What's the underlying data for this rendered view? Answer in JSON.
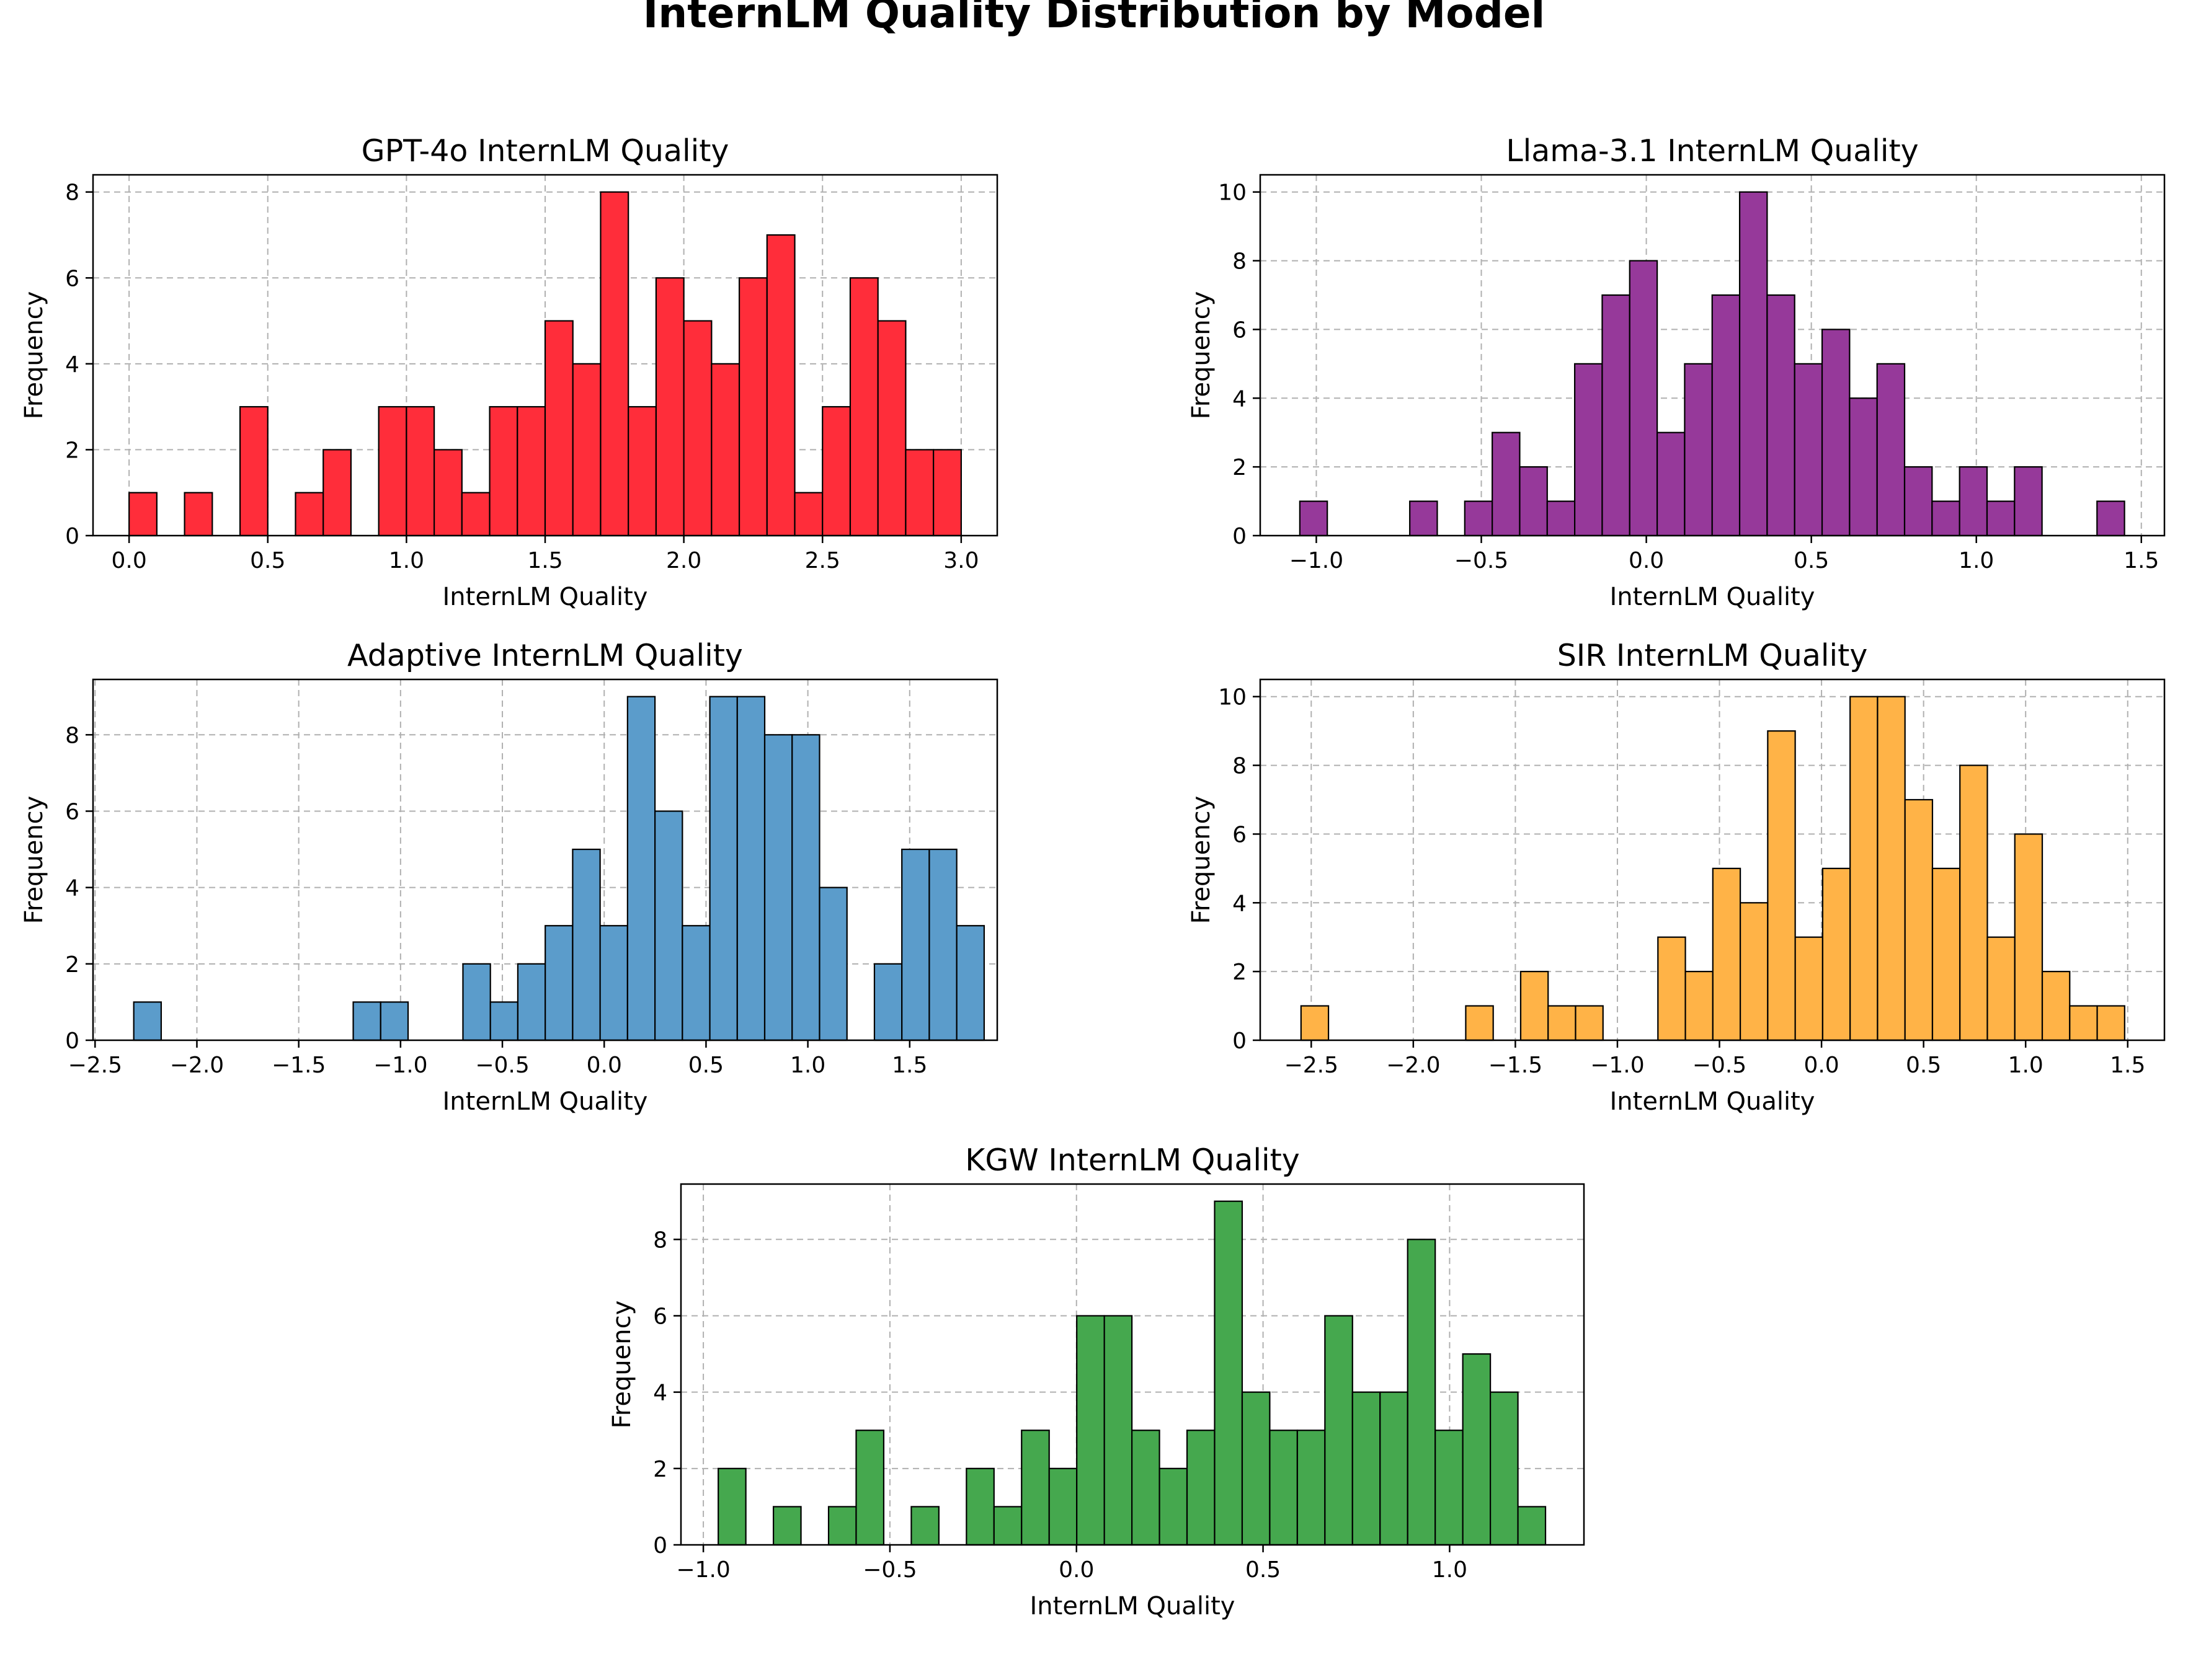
{
  "figure": {
    "suptitle": "InternLM Quality Distribution by Model"
  },
  "chart_data": [
    {
      "type": "bar",
      "title": "GPT-4o InternLM Quality",
      "xlabel": "InternLM Quality",
      "ylabel": "Frequency",
      "color": "#ff2d3a",
      "xlim": [
        -0.13,
        3.13
      ],
      "ylim": [
        0,
        8.4
      ],
      "x_ticks": [
        0.0,
        0.5,
        1.0,
        1.5,
        2.0,
        2.5,
        3.0
      ],
      "x_tick_labels": [
        "0.0",
        "0.5",
        "1.0",
        "1.5",
        "2.0",
        "2.5",
        "3.0"
      ],
      "y_ticks": [
        0,
        2,
        4,
        6,
        8
      ],
      "y_tick_labels": [
        "0",
        "2",
        "4",
        "6",
        "8"
      ],
      "bin_start": 0.0,
      "bin_width": 0.1,
      "values": [
        1,
        0,
        1,
        0,
        3,
        0,
        1,
        2,
        0,
        3,
        3,
        2,
        1,
        3,
        3,
        5,
        4,
        8,
        3,
        6,
        5,
        4,
        6,
        7,
        1,
        3,
        6,
        5,
        2,
        2
      ]
    },
    {
      "type": "bar",
      "title": "Llama-3.1 InternLM Quality",
      "xlabel": "InternLM Quality",
      "ylabel": "Frequency",
      "color": "#96399a",
      "xlim": [
        -1.17,
        1.57
      ],
      "ylim": [
        0,
        10.5
      ],
      "x_ticks": [
        -1.0,
        -0.5,
        0.0,
        0.5,
        1.0,
        1.5
      ],
      "x_tick_labels": [
        "−1.0",
        "−0.5",
        "0.0",
        "0.5",
        "1.0",
        "1.5"
      ],
      "y_ticks": [
        0,
        2,
        4,
        6,
        8,
        10
      ],
      "y_tick_labels": [
        "0",
        "2",
        "4",
        "6",
        "8",
        "10"
      ],
      "bin_start": -1.05,
      "bin_width": 0.0833,
      "values": [
        1,
        0,
        0,
        0,
        1,
        0,
        1,
        3,
        2,
        1,
        5,
        7,
        8,
        3,
        5,
        7,
        10,
        7,
        5,
        6,
        4,
        5,
        2,
        1,
        2,
        1,
        2,
        0,
        0,
        1
      ]
    },
    {
      "type": "bar",
      "title": "Adaptive InternLM Quality",
      "xlabel": "InternLM Quality",
      "ylabel": "Frequency",
      "color": "#5b9ccb",
      "xlim": [
        -2.51,
        1.93
      ],
      "ylim": [
        0,
        9.45
      ],
      "x_ticks": [
        -2.5,
        -2.0,
        -1.5,
        -1.0,
        -0.5,
        0.0,
        0.5,
        1.0,
        1.5
      ],
      "x_tick_labels": [
        "−2.5",
        "−2.0",
        "−1.5",
        "−1.0",
        "−0.5",
        "0.0",
        "0.5",
        "1.0",
        "1.5"
      ],
      "y_ticks": [
        0,
        2,
        4,
        6,
        8
      ],
      "y_tick_labels": [
        "0",
        "2",
        "4",
        "6",
        "8"
      ],
      "bin_start": -2.31,
      "bin_width": 0.1347,
      "values": [
        1,
        0,
        0,
        0,
        0,
        0,
        0,
        0,
        1,
        1,
        0,
        0,
        2,
        1,
        2,
        3,
        5,
        3,
        9,
        6,
        3,
        9,
        9,
        8,
        8,
        4,
        0,
        2,
        5,
        5,
        3
      ]
    },
    {
      "type": "bar",
      "title": "SIR InternLM Quality",
      "xlabel": "InternLM Quality",
      "ylabel": "Frequency",
      "color": "#ffb347",
      "xlim": [
        -2.75,
        1.68
      ],
      "ylim": [
        0,
        10.5
      ],
      "x_ticks": [
        -2.5,
        -2.0,
        -1.5,
        -1.0,
        -0.5,
        0.0,
        0.5,
        1.0,
        1.5
      ],
      "x_tick_labels": [
        "−2.5",
        "−2.0",
        "−1.5",
        "−1.0",
        "−0.5",
        "0.0",
        "0.5",
        "1.0",
        "1.5"
      ],
      "y_ticks": [
        0,
        2,
        4,
        6,
        8,
        10
      ],
      "y_tick_labels": [
        "0",
        "2",
        "4",
        "6",
        "8",
        "10"
      ],
      "bin_start": -2.55,
      "bin_width": 0.1345,
      "values": [
        1,
        0,
        0,
        0,
        0,
        0,
        1,
        0,
        2,
        1,
        1,
        0,
        0,
        3,
        2,
        5,
        4,
        9,
        3,
        5,
        10,
        10,
        7,
        5,
        8,
        3,
        6,
        2,
        1,
        1
      ]
    },
    {
      "type": "bar",
      "title": "KGW InternLM Quality",
      "xlabel": "InternLM Quality",
      "ylabel": "Frequency",
      "color": "#45a84e",
      "xlim": [
        -1.06,
        1.36
      ],
      "ylim": [
        0,
        9.45
      ],
      "x_ticks": [
        -1.0,
        -0.5,
        0.0,
        0.5,
        1.0
      ],
      "x_tick_labels": [
        "−1.0",
        "−0.5",
        "0.0",
        "0.5",
        "1.0"
      ],
      "y_ticks": [
        0,
        2,
        4,
        6,
        8
      ],
      "y_tick_labels": [
        "0",
        "2",
        "4",
        "6",
        "8"
      ],
      "bin_start": -0.96,
      "bin_width": 0.0739,
      "values": [
        2,
        0,
        1,
        0,
        1,
        3,
        0,
        1,
        0,
        2,
        1,
        3,
        2,
        6,
        6,
        3,
        2,
        3,
        9,
        4,
        3,
        3,
        6,
        4,
        4,
        8,
        3,
        5,
        4,
        1
      ]
    }
  ]
}
